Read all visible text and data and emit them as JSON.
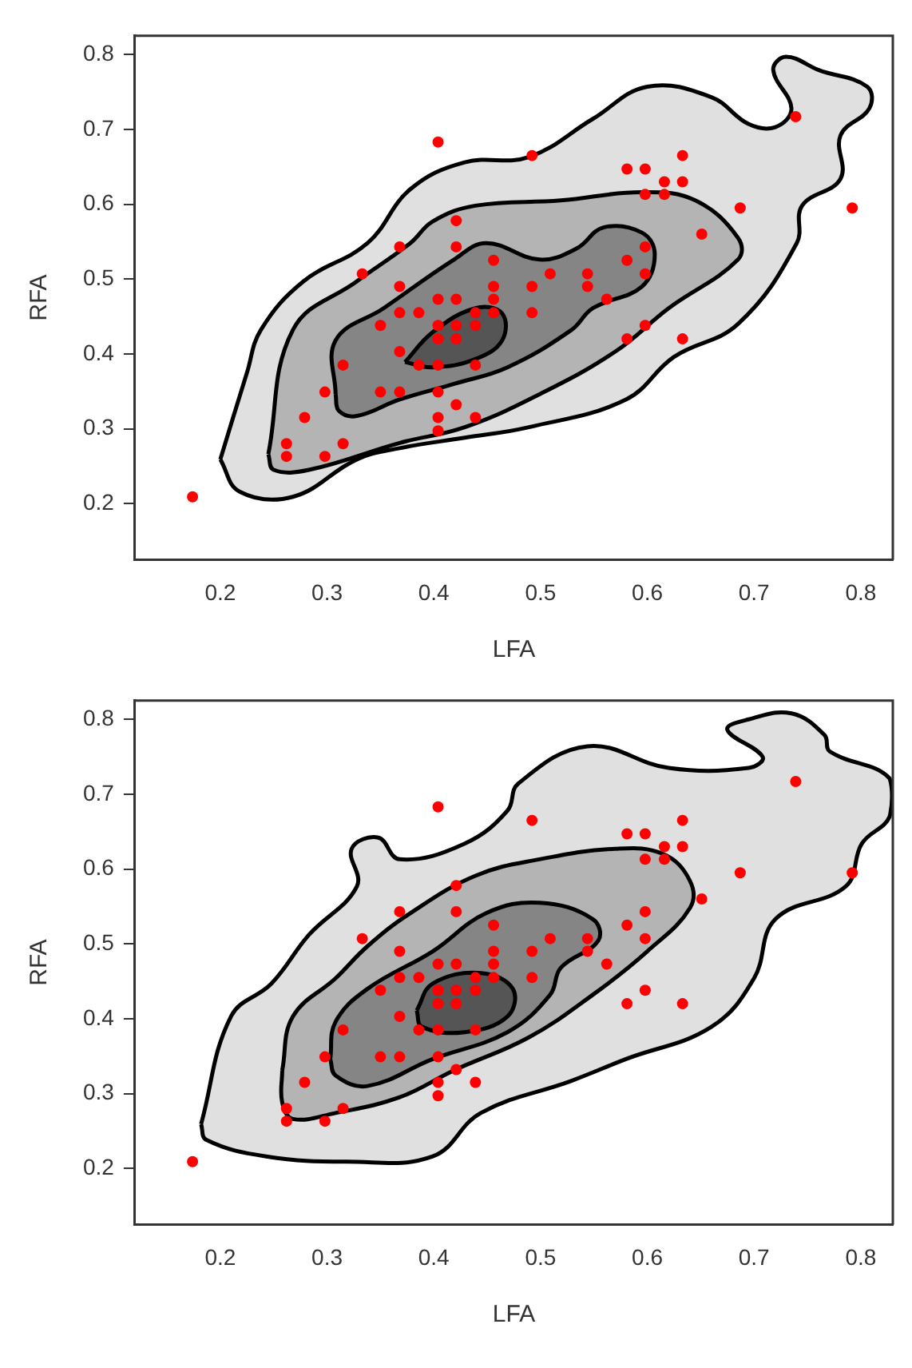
{
  "chart_data": [
    {
      "type": "scatter",
      "xlabel": "LFA",
      "ylabel": "RFA",
      "xlim": [
        0.12,
        0.83
      ],
      "ylim": [
        0.125,
        0.825
      ],
      "xticks": [
        0.2,
        0.3,
        0.4,
        0.5,
        0.6,
        0.7,
        0.8
      ],
      "yticks": [
        0.2,
        0.3,
        0.4,
        0.5,
        0.6,
        0.7,
        0.8
      ],
      "grid": false,
      "legend": false,
      "marker": "circle",
      "series": [
        {
          "type": "area",
          "marker": "none",
          "color": "#e0e0e0",
          "x": [
            0.2,
            0.225,
            0.238,
            0.278,
            0.338,
            0.378,
            0.429,
            0.489,
            0.549,
            0.6,
            0.66,
            0.695,
            0.72,
            0.735,
            0.718,
            0.73,
            0.761,
            0.806,
            0.808,
            0.781,
            0.781,
            0.745,
            0.74,
            0.685,
            0.625,
            0.58,
            0.489,
            0.429,
            0.368,
            0.328,
            0.268,
            0.218
          ],
          "values": [
            0.259,
            0.375,
            0.432,
            0.497,
            0.548,
            0.62,
            0.656,
            0.663,
            0.714,
            0.757,
            0.743,
            0.707,
            0.703,
            0.728,
            0.779,
            0.797,
            0.779,
            0.757,
            0.728,
            0.692,
            0.634,
            0.598,
            0.548,
            0.44,
            0.396,
            0.339,
            0.302,
            0.288,
            0.274,
            0.259,
            0.209,
            0.216
          ]
        },
        {
          "type": "area",
          "marker": "none",
          "color": "#b4b4b4",
          "x": [
            0.245,
            0.268,
            0.328,
            0.378,
            0.399,
            0.439,
            0.519,
            0.595,
            0.645,
            0.685,
            0.685,
            0.62,
            0.57,
            0.499,
            0.429,
            0.368,
            0.283,
            0.25
          ],
          "values": [
            0.266,
            0.432,
            0.497,
            0.548,
            0.577,
            0.598,
            0.605,
            0.616,
            0.605,
            0.555,
            0.526,
            0.461,
            0.403,
            0.346,
            0.302,
            0.281,
            0.245,
            0.245
          ]
        },
        {
          "type": "area",
          "marker": "none",
          "color": "#858585",
          "x": [
            0.308,
            0.308,
            0.353,
            0.419,
            0.449,
            0.499,
            0.534,
            0.559,
            0.595,
            0.607,
            0.595,
            0.549,
            0.529,
            0.469,
            0.419,
            0.368,
            0.328,
            0.311
          ],
          "values": [
            0.346,
            0.418,
            0.461,
            0.526,
            0.548,
            0.526,
            0.541,
            0.569,
            0.562,
            0.533,
            0.49,
            0.461,
            0.432,
            0.382,
            0.36,
            0.339,
            0.317,
            0.324
          ]
        },
        {
          "type": "area",
          "marker": "none",
          "color": "#555555",
          "x": [
            0.373,
            0.399,
            0.439,
            0.464,
            0.464,
            0.439,
            0.399
          ],
          "values": [
            0.389,
            0.429,
            0.461,
            0.454,
            0.418,
            0.393,
            0.382
          ]
        },
        {
          "type": "scatter",
          "color": "#ff0000",
          "x": [
            0.174,
            0.404,
            0.492,
            0.739,
            0.581,
            0.598,
            0.633,
            0.616,
            0.633,
            0.598,
            0.616,
            0.687,
            0.792,
            0.421,
            0.651,
            0.368,
            0.421,
            0.598,
            0.456,
            0.581,
            0.333,
            0.509,
            0.544,
            0.598,
            0.368,
            0.456,
            0.492,
            0.544,
            0.404,
            0.421,
            0.456,
            0.562,
            0.368,
            0.386,
            0.439,
            0.456,
            0.492,
            0.35,
            0.404,
            0.421,
            0.439,
            0.598,
            0.404,
            0.421,
            0.581,
            0.633,
            0.368,
            0.315,
            0.386,
            0.404,
            0.439,
            0.298,
            0.35,
            0.368,
            0.404,
            0.421,
            0.279,
            0.404,
            0.439,
            0.404,
            0.262,
            0.315,
            0.262,
            0.298
          ],
          "values": [
            0.209,
            0.683,
            0.665,
            0.717,
            0.647,
            0.647,
            0.665,
            0.63,
            0.63,
            0.613,
            0.613,
            0.595,
            0.595,
            0.578,
            0.56,
            0.543,
            0.543,
            0.543,
            0.525,
            0.525,
            0.507,
            0.507,
            0.507,
            0.507,
            0.49,
            0.49,
            0.49,
            0.49,
            0.473,
            0.473,
            0.473,
            0.473,
            0.455,
            0.455,
            0.455,
            0.455,
            0.455,
            0.438,
            0.438,
            0.438,
            0.438,
            0.438,
            0.42,
            0.42,
            0.42,
            0.42,
            0.403,
            0.385,
            0.385,
            0.385,
            0.385,
            0.349,
            0.349,
            0.349,
            0.349,
            0.332,
            0.315,
            0.315,
            0.315,
            0.297,
            0.28,
            0.28,
            0.263,
            0.263
          ]
        }
      ]
    },
    {
      "type": "scatter",
      "xlabel": "LFA",
      "ylabel": "RFA",
      "xlim": [
        0.12,
        0.83
      ],
      "ylim": [
        0.125,
        0.825
      ],
      "xticks": [
        0.2,
        0.3,
        0.4,
        0.5,
        0.6,
        0.7,
        0.8
      ],
      "yticks": [
        0.2,
        0.3,
        0.4,
        0.5,
        0.6,
        0.7,
        0.8
      ],
      "grid": false,
      "legend": false,
      "marker": "circle",
      "series": [
        {
          "type": "area",
          "marker": "none",
          "color": "#e0e0e0",
          "x": [
            0.182,
            0.21,
            0.248,
            0.283,
            0.328,
            0.323,
            0.348,
            0.368,
            0.429,
            0.469,
            0.479,
            0.544,
            0.62,
            0.695,
            0.708,
            0.675,
            0.695,
            0.735,
            0.766,
            0.771,
            0.827,
            0.827,
            0.801,
            0.786,
            0.72,
            0.7,
            0.66,
            0.58,
            0.529,
            0.444,
            0.399,
            0.318,
            0.243,
            0.187
          ],
          "values": [
            0.259,
            0.403,
            0.447,
            0.512,
            0.577,
            0.627,
            0.642,
            0.613,
            0.634,
            0.678,
            0.714,
            0.764,
            0.735,
            0.735,
            0.75,
            0.786,
            0.8,
            0.808,
            0.779,
            0.757,
            0.721,
            0.67,
            0.634,
            0.577,
            0.533,
            0.454,
            0.389,
            0.346,
            0.317,
            0.274,
            0.216,
            0.209,
            0.216,
            0.238
          ]
        },
        {
          "type": "area",
          "marker": "none",
          "color": "#b4b4b4",
          "x": [
            0.258,
            0.268,
            0.308,
            0.338,
            0.378,
            0.439,
            0.499,
            0.57,
            0.615,
            0.64,
            0.64,
            0.6,
            0.549,
            0.489,
            0.419,
            0.368,
            0.308,
            0.268,
            0.258
          ],
          "values": [
            0.331,
            0.403,
            0.454,
            0.497,
            0.541,
            0.591,
            0.613,
            0.627,
            0.62,
            0.584,
            0.548,
            0.49,
            0.432,
            0.375,
            0.331,
            0.295,
            0.274,
            0.266,
            0.288
          ]
        },
        {
          "type": "area",
          "marker": "none",
          "color": "#858585",
          "x": [
            0.303,
            0.308,
            0.338,
            0.399,
            0.449,
            0.499,
            0.549,
            0.554,
            0.519,
            0.509,
            0.469,
            0.399,
            0.338,
            0.308
          ],
          "values": [
            0.346,
            0.396,
            0.44,
            0.49,
            0.541,
            0.555,
            0.533,
            0.504,
            0.468,
            0.432,
            0.382,
            0.346,
            0.31,
            0.324
          ]
        },
        {
          "type": "area",
          "marker": "none",
          "color": "#555555",
          "x": [
            0.384,
            0.399,
            0.444,
            0.474,
            0.469,
            0.429,
            0.389
          ],
          "values": [
            0.411,
            0.447,
            0.461,
            0.44,
            0.403,
            0.382,
            0.389
          ]
        },
        {
          "type": "scatter",
          "color": "#ff0000",
          "x": [
            0.174,
            0.404,
            0.492,
            0.739,
            0.581,
            0.598,
            0.633,
            0.616,
            0.633,
            0.598,
            0.616,
            0.687,
            0.792,
            0.421,
            0.651,
            0.368,
            0.421,
            0.598,
            0.456,
            0.581,
            0.333,
            0.509,
            0.544,
            0.598,
            0.368,
            0.456,
            0.492,
            0.544,
            0.404,
            0.421,
            0.456,
            0.562,
            0.368,
            0.386,
            0.439,
            0.456,
            0.492,
            0.35,
            0.404,
            0.421,
            0.439,
            0.598,
            0.404,
            0.421,
            0.581,
            0.633,
            0.368,
            0.315,
            0.386,
            0.404,
            0.439,
            0.298,
            0.35,
            0.368,
            0.404,
            0.421,
            0.279,
            0.404,
            0.439,
            0.404,
            0.262,
            0.315,
            0.262,
            0.298
          ],
          "values": [
            0.209,
            0.683,
            0.665,
            0.717,
            0.647,
            0.647,
            0.665,
            0.63,
            0.63,
            0.613,
            0.613,
            0.595,
            0.595,
            0.578,
            0.56,
            0.543,
            0.543,
            0.543,
            0.525,
            0.525,
            0.507,
            0.507,
            0.507,
            0.507,
            0.49,
            0.49,
            0.49,
            0.49,
            0.473,
            0.473,
            0.473,
            0.473,
            0.455,
            0.455,
            0.455,
            0.455,
            0.455,
            0.438,
            0.438,
            0.438,
            0.438,
            0.438,
            0.42,
            0.42,
            0.42,
            0.42,
            0.403,
            0.385,
            0.385,
            0.385,
            0.385,
            0.349,
            0.349,
            0.349,
            0.349,
            0.332,
            0.315,
            0.315,
            0.315,
            0.297,
            0.28,
            0.28,
            0.263,
            0.263
          ]
        }
      ]
    }
  ]
}
